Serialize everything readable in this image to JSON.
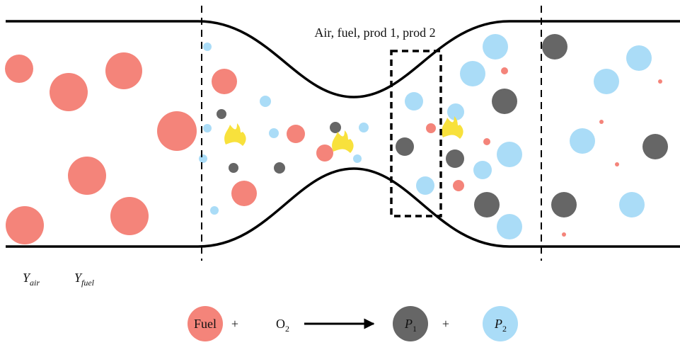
{
  "labels": {
    "mixture": "Air, fuel, prod 1, prod 2",
    "y_air": {
      "base": "Y",
      "sub": "air"
    },
    "y_fuel": {
      "base": "Y",
      "sub": "fuel"
    }
  },
  "reaction": {
    "fuel": "Fuel",
    "plus_1": "+",
    "oxygen": {
      "base": "O",
      "sub": "2"
    },
    "product_1": {
      "base": "P",
      "sub": "1"
    },
    "plus_2": "+",
    "product_2": {
      "base": "P",
      "sub": "2"
    }
  }
}
